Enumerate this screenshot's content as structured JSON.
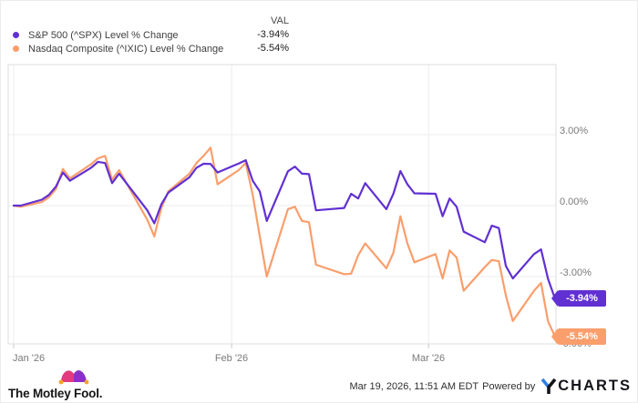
{
  "legend": {
    "val_header": "VAL",
    "series": [
      {
        "name": "S&P 500 (^SPX) Level % Change",
        "val": "-3.94%",
        "color": "#6130d2"
      },
      {
        "name": "Nasdaq Composite (^IXIC) Level % Change",
        "val": "-5.54%",
        "color": "#fa9e6c"
      }
    ]
  },
  "chart_data": {
    "type": "line",
    "title": "",
    "xlabel": "",
    "ylabel": "Level % Change",
    "grid": true,
    "legend_position": "top-left",
    "x_axis": {
      "labels": [
        "Jan '26",
        "Feb '26",
        "Mar '26"
      ],
      "gridline_dates": [
        "2026-01-01",
        "2026-02-01",
        "2026-03-01"
      ],
      "range": [
        "2026-01-01",
        "2026-03-19"
      ]
    },
    "y_axis": {
      "unit": "%",
      "tick_labels": [
        "3.00%",
        "0.00%",
        "-3.00%",
        "-6.00%"
      ],
      "grid_values": [
        3,
        0,
        -3
      ],
      "ylim": [
        -5.85,
        5.96
      ]
    },
    "dates": [
      "2026-01-01",
      "2026-01-02",
      "2026-01-05",
      "2026-01-06",
      "2026-01-07",
      "2026-01-08",
      "2026-01-09",
      "2026-01-12",
      "2026-01-13",
      "2026-01-14",
      "2026-01-15",
      "2026-01-16",
      "2026-01-20",
      "2026-01-21",
      "2026-01-22",
      "2026-01-23",
      "2026-01-26",
      "2026-01-27",
      "2026-01-28",
      "2026-01-29",
      "2026-01-30",
      "2026-02-02",
      "2026-02-03",
      "2026-02-04",
      "2026-02-05",
      "2026-02-06",
      "2026-02-09",
      "2026-02-10",
      "2026-02-11",
      "2026-02-12",
      "2026-02-13",
      "2026-02-17",
      "2026-02-18",
      "2026-02-19",
      "2026-02-20",
      "2026-02-23",
      "2026-02-24",
      "2026-02-25",
      "2026-02-26",
      "2026-02-27",
      "2026-03-02",
      "2026-03-03",
      "2026-03-04",
      "2026-03-05",
      "2026-03-06",
      "2026-03-09",
      "2026-03-10",
      "2026-03-11",
      "2026-03-12",
      "2026-03-13",
      "2026-03-16",
      "2026-03-17",
      "2026-03-18",
      "2026-03-19"
    ],
    "series": [
      {
        "name": "S&P 500 (^SPX) Level % Change",
        "color": "#6130d2",
        "end_label": "-3.94%",
        "values": [
          0.0,
          0.0,
          0.25,
          0.45,
          0.8,
          1.4,
          1.05,
          1.6,
          1.85,
          1.8,
          0.95,
          1.35,
          -0.2,
          -0.75,
          0.05,
          0.55,
          1.2,
          1.6,
          1.77,
          1.76,
          1.4,
          1.78,
          1.92,
          1.05,
          0.6,
          -0.65,
          1.45,
          1.65,
          1.35,
          1.33,
          -0.2,
          -0.1,
          0.5,
          0.3,
          0.95,
          -0.15,
          0.5,
          1.46,
          0.9,
          0.52,
          0.5,
          -0.45,
          0.3,
          -0.05,
          -1.1,
          -1.55,
          -0.85,
          -0.95,
          -2.55,
          -3.08,
          -2.05,
          -1.85,
          -3.1,
          -3.94
        ]
      },
      {
        "name": "Nasdaq Composite (^IXIC) Level % Change",
        "color": "#fa9e6c",
        "end_label": "-5.54%",
        "values": [
          0.0,
          -0.05,
          0.15,
          0.35,
          0.7,
          1.55,
          1.15,
          1.75,
          2.0,
          2.1,
          1.1,
          1.5,
          -0.6,
          -1.3,
          -0.1,
          0.6,
          1.35,
          1.8,
          2.1,
          2.45,
          0.9,
          1.5,
          1.8,
          0.45,
          -1.3,
          -3.0,
          -0.15,
          -0.05,
          -0.65,
          -0.7,
          -2.5,
          -2.9,
          -2.88,
          -2.1,
          -1.6,
          -2.65,
          -2.0,
          -0.45,
          -1.6,
          -2.4,
          -2.05,
          -3.08,
          -1.9,
          -2.2,
          -3.6,
          -2.6,
          -2.3,
          -2.35,
          -3.8,
          -4.88,
          -3.6,
          -3.27,
          -4.9,
          -5.54
        ]
      }
    ]
  },
  "footer": {
    "brand": "The Motley Fool.",
    "timestamp": "Mar 19, 2026, 11:51 AM EDT",
    "powered_by": "Powered by",
    "charts_wordmark": "CHARTS"
  },
  "colors": {
    "spx_purple": "#6130d2",
    "ixic_orange": "#fa9e6c",
    "gridline": "#ececec",
    "plot_border": "#dcdcdc",
    "axis_text": "#7a7a7a",
    "ycharts_blue": "#2e7fe8"
  }
}
